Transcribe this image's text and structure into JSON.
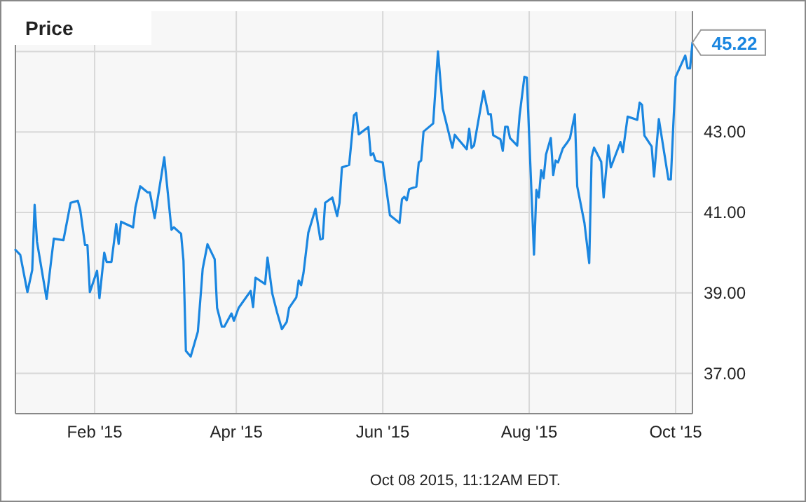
{
  "chart_data": {
    "type": "line",
    "title": "Price",
    "xlim": [
      "2014-12-30",
      "2015-10-08"
    ],
    "xticks": [
      {
        "value": "2015-02-01",
        "label": "Feb '15"
      },
      {
        "value": "2015-04-01",
        "label": "Apr '15"
      },
      {
        "value": "2015-06-01",
        "label": "Jun '15"
      },
      {
        "value": "2015-08-01",
        "label": "Aug '15"
      },
      {
        "value": "2015-10-01",
        "label": "Oct '15"
      }
    ],
    "ylim": [
      36,
      46
    ],
    "yticks": [
      {
        "value": 37,
        "label": "37.00"
      },
      {
        "value": 39,
        "label": "39.00"
      },
      {
        "value": 41,
        "label": "41.00"
      },
      {
        "value": 43,
        "label": "43.00"
      },
      {
        "value": 45,
        "label": null
      }
    ],
    "grid": true,
    "annotations": [
      {
        "text": "45.22",
        "x": "2015-10-08",
        "y": 45.22
      },
      "Oct 08 2015, 11:12AM EDT."
    ],
    "series": [
      {
        "color": "#1a86e0",
        "x": [
          "2014-12-30",
          "2015-01-01",
          "2015-01-04",
          "2015-01-06",
          "2015-01-07",
          "2015-01-08",
          "2015-01-12",
          "2015-01-14",
          "2015-01-15",
          "2015-01-19",
          "2015-01-22",
          "2015-01-25",
          "2015-01-26",
          "2015-01-28",
          "2015-01-29",
          "2015-01-30",
          "2015-02-02",
          "2015-02-03",
          "2015-02-05",
          "2015-02-06",
          "2015-02-08",
          "2015-02-10",
          "2015-02-11",
          "2015-02-12",
          "2015-02-17",
          "2015-02-18",
          "2015-02-20",
          "2015-02-23",
          "2015-02-24",
          "2015-02-26",
          "2015-03-02",
          "2015-03-05",
          "2015-03-06",
          "2015-03-09",
          "2015-03-10",
          "2015-03-11",
          "2015-03-13",
          "2015-03-16",
          "2015-03-18",
          "2015-03-20",
          "2015-03-23",
          "2015-03-24",
          "2015-03-26",
          "2015-03-27",
          "2015-03-30",
          "2015-03-31",
          "2015-04-02",
          "2015-04-07",
          "2015-04-08",
          "2015-04-09",
          "2015-04-13",
          "2015-04-14",
          "2015-04-16",
          "2015-04-18",
          "2015-04-20",
          "2015-04-22",
          "2015-04-23",
          "2015-04-26",
          "2015-04-27",
          "2015-04-28",
          "2015-04-29",
          "2015-05-01",
          "2015-05-04",
          "2015-05-06",
          "2015-05-07",
          "2015-05-08",
          "2015-05-11",
          "2015-05-13",
          "2015-05-14",
          "2015-05-15",
          "2015-05-18",
          "2015-05-20",
          "2015-05-21",
          "2015-05-22",
          "2015-05-26",
          "2015-05-27",
          "2015-05-28",
          "2015-05-29",
          "2015-06-01",
          "2015-06-04",
          "2015-06-08",
          "2015-06-09",
          "2015-06-10",
          "2015-06-11",
          "2015-06-12",
          "2015-06-15",
          "2015-06-16",
          "2015-06-17",
          "2015-06-18",
          "2015-06-22",
          "2015-06-24",
          "2015-06-26",
          "2015-06-30",
          "2015-07-01",
          "2015-07-02",
          "2015-07-06",
          "2015-07-07",
          "2015-07-08",
          "2015-07-09",
          "2015-07-13",
          "2015-07-15",
          "2015-07-16",
          "2015-07-17",
          "2015-07-20",
          "2015-07-21",
          "2015-07-22",
          "2015-07-23",
          "2015-07-24",
          "2015-07-27",
          "2015-07-28",
          "2015-07-30",
          "2015-07-31",
          "2015-08-03",
          "2015-08-04",
          "2015-08-05",
          "2015-08-06",
          "2015-08-07",
          "2015-08-08",
          "2015-08-10",
          "2015-08-11",
          "2015-08-12",
          "2015-08-13",
          "2015-08-15",
          "2015-08-17",
          "2015-08-18",
          "2015-08-20",
          "2015-08-21",
          "2015-08-24",
          "2015-08-26",
          "2015-08-27",
          "2015-08-28",
          "2015-08-31",
          "2015-09-01",
          "2015-09-03",
          "2015-09-04",
          "2015-09-08",
          "2015-09-09",
          "2015-09-11",
          "2015-09-14",
          "2015-09-15",
          "2015-09-16",
          "2015-09-17",
          "2015-09-18",
          "2015-09-21",
          "2015-09-22",
          "2015-09-24",
          "2015-09-28",
          "2015-09-29",
          "2015-09-30",
          "2015-10-01",
          "2015-10-05",
          "2015-10-06",
          "2015-10-07",
          "2015-10-08"
        ],
        "values": [
          40.07,
          39.95,
          39.02,
          39.57,
          41.19,
          40.27,
          38.85,
          39.86,
          40.35,
          40.31,
          41.24,
          41.29,
          41.06,
          40.19,
          40.19,
          39.02,
          39.55,
          38.87,
          40.0,
          39.77,
          39.77,
          40.71,
          40.22,
          40.77,
          40.63,
          41.13,
          41.65,
          41.5,
          41.5,
          40.86,
          42.37,
          40.57,
          40.63,
          40.47,
          39.8,
          37.56,
          37.42,
          38.04,
          39.6,
          40.21,
          39.84,
          38.63,
          38.16,
          38.16,
          38.49,
          38.31,
          38.63,
          39.05,
          38.65,
          39.38,
          39.22,
          39.88,
          38.98,
          38.51,
          38.1,
          38.28,
          38.63,
          38.89,
          39.31,
          39.19,
          39.5,
          40.5,
          41.09,
          40.33,
          40.35,
          41.24,
          41.37,
          40.91,
          41.24,
          42.12,
          42.18,
          43.41,
          43.47,
          42.94,
          43.12,
          42.42,
          42.47,
          42.29,
          42.24,
          40.93,
          40.74,
          41.33,
          41.39,
          41.3,
          41.58,
          41.64,
          42.24,
          42.29,
          43.01,
          43.21,
          45.0,
          43.58,
          42.61,
          42.93,
          42.85,
          42.57,
          43.08,
          42.6,
          42.66,
          44.02,
          43.44,
          43.44,
          42.92,
          42.82,
          42.53,
          43.13,
          43.13,
          42.85,
          42.66,
          43.41,
          44.37,
          44.35,
          39.95,
          41.56,
          41.37,
          42.05,
          41.85,
          42.44,
          42.85,
          41.93,
          42.29,
          42.24,
          42.59,
          42.75,
          42.85,
          43.44,
          41.65,
          40.74,
          39.74,
          42.38,
          42.61,
          42.26,
          41.37,
          42.67,
          42.12,
          42.75,
          42.5,
          43.38,
          43.32,
          43.3,
          43.73,
          43.67,
          42.91,
          42.64,
          41.89,
          43.32,
          41.82,
          41.82,
          43.14,
          44.37,
          44.9,
          44.58,
          44.58,
          45.22
        ]
      }
    ]
  }
}
